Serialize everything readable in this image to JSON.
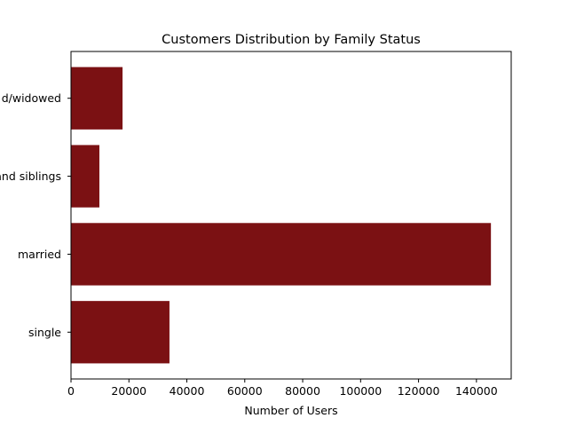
{
  "chart_data": {
    "type": "bar",
    "orientation": "horizontal",
    "title": "Customers Distribution by Family Status",
    "xlabel": "Number of Users",
    "ylabel": "",
    "categories": [
      "single",
      "married",
      "and siblings",
      "d/widowed"
    ],
    "values": [
      34000,
      145000,
      9800,
      17800
    ],
    "xlim": [
      0,
      152000
    ],
    "xticks": [
      0,
      20000,
      40000,
      60000,
      80000,
      100000,
      120000,
      140000
    ],
    "bar_color": "#7b1113",
    "grid": false,
    "legend": "none"
  }
}
